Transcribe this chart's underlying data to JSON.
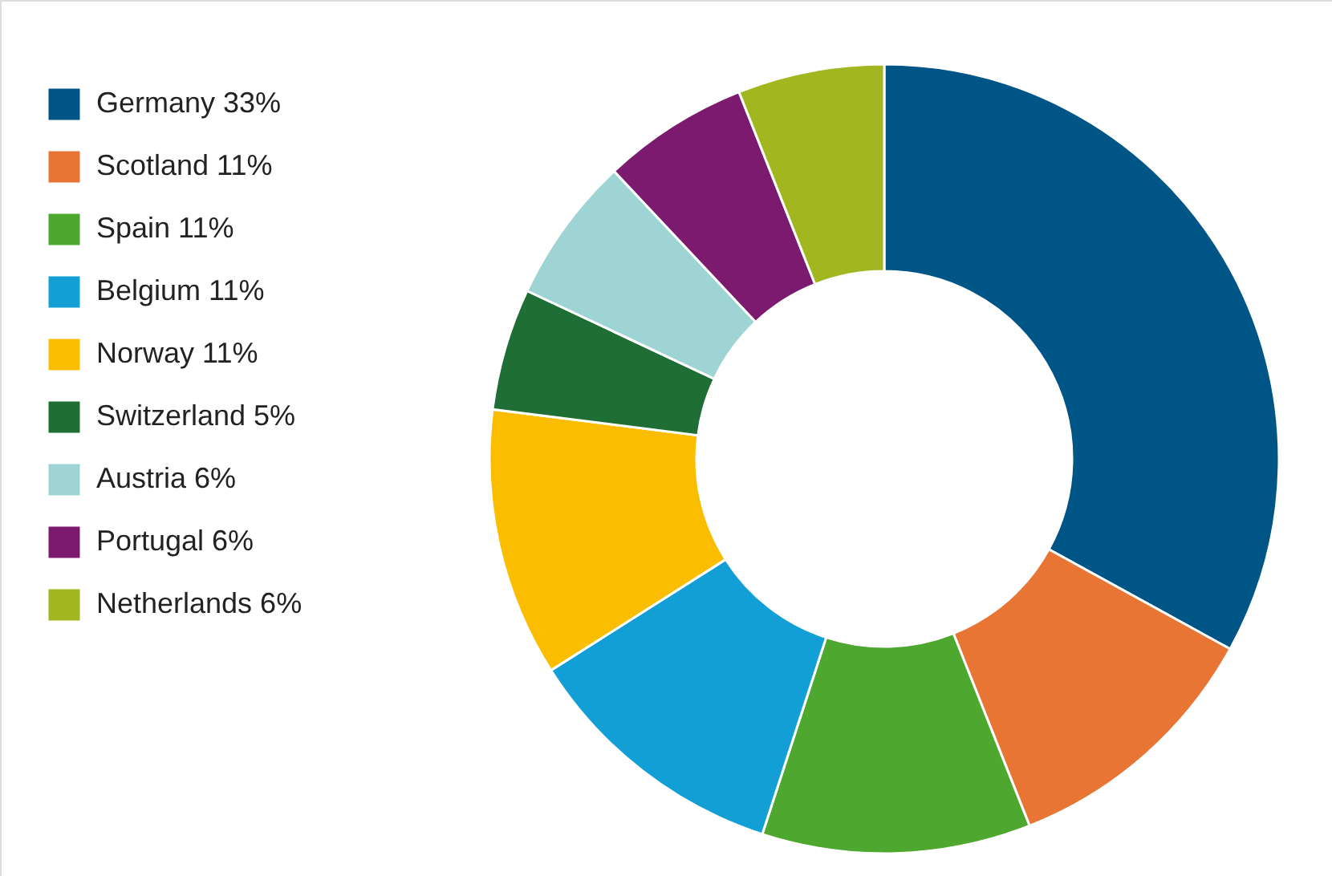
{
  "chart_data": {
    "type": "donut",
    "categories": [
      "Germany 33%",
      "Scotland 11%",
      "Spain 11%",
      "Belgium 11%",
      "Norway 11%",
      "Switzerland 5%",
      "Austria 6%",
      "Portugal 6%",
      "Netherlands 6%"
    ],
    "values": [
      33,
      11,
      11,
      11,
      11,
      5,
      6,
      6,
      6
    ],
    "colors": [
      "#005587",
      "#e87534",
      "#4ea72e",
      "#129fd6",
      "#fbbd00",
      "#1e6e35",
      "#9ed4d4",
      "#7b1a6f",
      "#a1b61f"
    ],
    "legend": "left"
  }
}
